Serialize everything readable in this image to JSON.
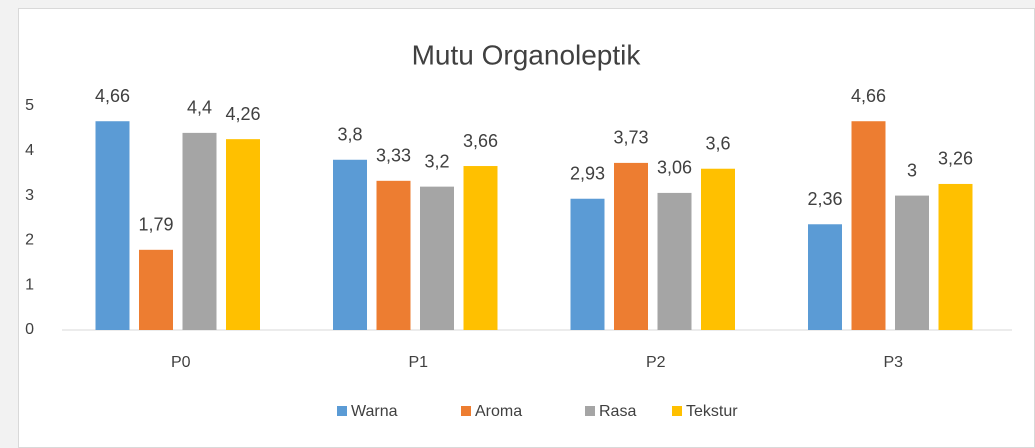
{
  "chart_data": {
    "type": "bar",
    "title": "Mutu Organoleptik",
    "categories": [
      "P0",
      "P1",
      "P2",
      "P3"
    ],
    "series": [
      {
        "name": "Warna",
        "color": "#5b9bd5",
        "values": [
          4.66,
          3.8,
          2.93,
          2.36
        ],
        "value_labels": [
          "4,66",
          "3,8",
          "2,93",
          "2,36"
        ]
      },
      {
        "name": "Aroma",
        "color": "#ed7d31",
        "values": [
          1.79,
          3.33,
          3.73,
          4.66
        ],
        "value_labels": [
          "1,79",
          "3,33",
          "3,73",
          "4,66"
        ]
      },
      {
        "name": "Rasa",
        "color": "#a5a5a5",
        "values": [
          4.4,
          3.2,
          3.06,
          3
        ],
        "value_labels": [
          "4,4",
          "3,2",
          "3,06",
          "3"
        ]
      },
      {
        "name": "Tekstur",
        "color": "#ffc000",
        "values": [
          4.26,
          3.66,
          3.6,
          3.26
        ],
        "value_labels": [
          "4,26",
          "3,66",
          "3,6",
          "3,26"
        ]
      }
    ],
    "ylim": [
      0,
      5
    ],
    "yticks": [
      0,
      1,
      2,
      3,
      4,
      5
    ],
    "grid": false,
    "legend": "bottom"
  }
}
